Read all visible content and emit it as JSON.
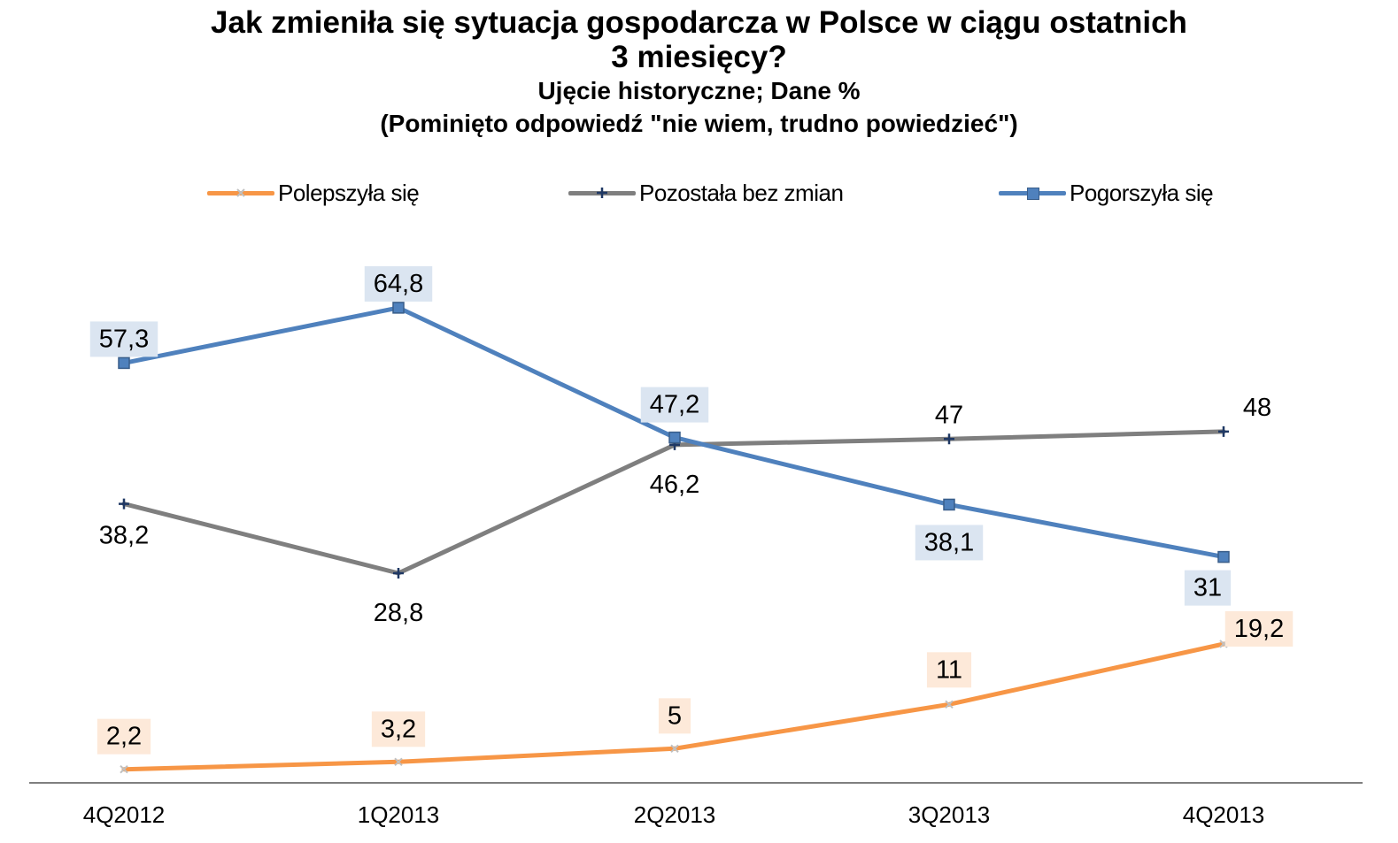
{
  "chart_data": {
    "type": "line",
    "title": "Jak zmieniła się sytuacja gospodarcza  w Polsce w ciągu ostatnich",
    "title_line2": "3 miesięcy?",
    "subtitle": "Ujęcie historyczne; Dane %",
    "subtitle2": "(Pominięto odpowiedź  \"nie wiem, trudno powiedzieć\")",
    "categories": [
      "4Q2012",
      "1Q2013",
      "2Q2013",
      "3Q2013",
      "4Q2013"
    ],
    "ylim": [
      0,
      70
    ],
    "grid": false,
    "legend_position": "top",
    "series": [
      {
        "name": "Polepszyła się",
        "values": [
          2.2,
          3.2,
          5,
          11,
          19.2
        ],
        "labels": [
          "2,2",
          "3,2",
          "5",
          "11",
          "19,2"
        ],
        "color": "#f79646",
        "label_bg": "#fde9d9",
        "marker": "x"
      },
      {
        "name": "Pozostała bez zmian",
        "values": [
          38.2,
          28.8,
          46.2,
          47,
          48
        ],
        "labels": [
          "38,2",
          "28,8",
          "46,2",
          "47",
          "48"
        ],
        "color": "#7f7f7f",
        "label_bg": "",
        "marker": "plus"
      },
      {
        "name": "Pogorszyła się",
        "values": [
          57.3,
          64.8,
          47.2,
          38.1,
          31
        ],
        "labels": [
          "57,3",
          "64,8",
          "47,2",
          "38,1",
          "31"
        ],
        "color": "#4f81bd",
        "label_bg": "#dbe5f1",
        "marker": "square"
      }
    ]
  }
}
